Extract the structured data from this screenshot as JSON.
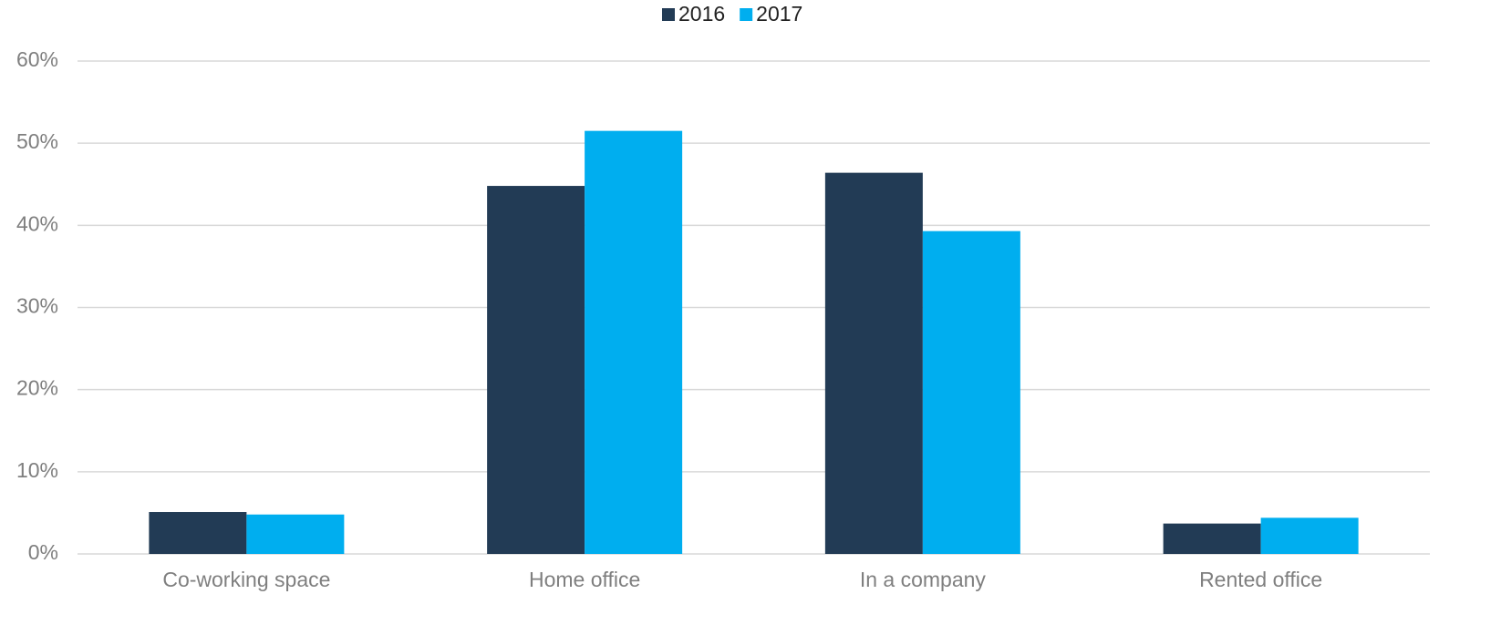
{
  "chart_data": {
    "type": "bar",
    "categories": [
      "Co-working space",
      "Home office",
      "In a company",
      "Rented office"
    ],
    "series": [
      {
        "name": "2016",
        "color": "#223b55",
        "values": [
          5.1,
          44.8,
          46.4,
          3.7
        ]
      },
      {
        "name": "2017",
        "color": "#00aeef",
        "values": [
          4.8,
          51.5,
          39.3,
          4.4
        ]
      }
    ],
    "ylim": [
      0,
      60
    ],
    "yticks": [
      {
        "value": 0,
        "label": "0%"
      },
      {
        "value": 10,
        "label": "10%"
      },
      {
        "value": 20,
        "label": "20%"
      },
      {
        "value": 30,
        "label": "30%"
      },
      {
        "value": 40,
        "label": "40%"
      },
      {
        "value": 50,
        "label": "50%"
      },
      {
        "value": 60,
        "label": "60%"
      }
    ],
    "grid": true,
    "legend": "top"
  }
}
